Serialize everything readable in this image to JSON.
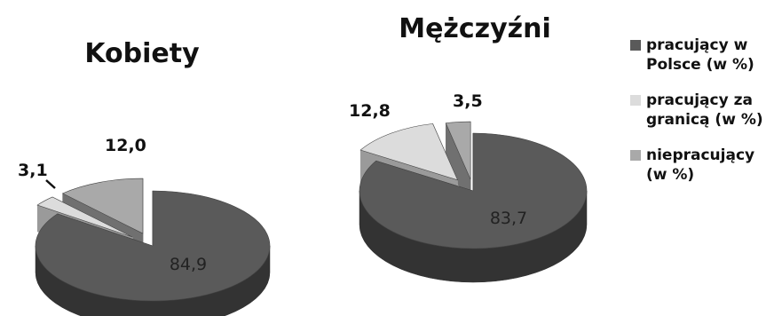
{
  "chart_data": [
    {
      "type": "pie",
      "title": "Kobiety",
      "series": [
        {
          "name": "pracujący w Polsce (w %)",
          "value": 84.9,
          "label": "84,9"
        },
        {
          "name": "pracujący za granicą (w %)",
          "value": 3.1,
          "label": "3,1"
        },
        {
          "name": "niepracujący (w %)",
          "value": 12.0,
          "label": "12,0"
        }
      ]
    },
    {
      "type": "pie",
      "title": "Mężczyźni",
      "series": [
        {
          "name": "pracujący w Polsce (w %)",
          "value": 83.7,
          "label": "83,7"
        },
        {
          "name": "pracujący za granicą (w %)",
          "value": 12.8,
          "label": "12,8"
        },
        {
          "name": "niepracujący (w %)",
          "value": 3.5,
          "label": "3,5"
        }
      ]
    }
  ],
  "legend": {
    "placement": "right",
    "items": [
      {
        "label_line1": "pracujący w",
        "label_line2": "Polsce (w %)",
        "color": "#5a5a5a"
      },
      {
        "label_line1": "pracujący za",
        "label_line2": "granicą (w %)",
        "color": "#dcdcdc"
      },
      {
        "label_line1": "niepracujący",
        "label_line2": "(w %)",
        "color": "#a9a9a9"
      }
    ]
  },
  "colors": {
    "top": [
      "#5a5a5a",
      "#dcdcdc",
      "#a9a9a9"
    ],
    "side": [
      "#333333",
      "#9a9a9a",
      "#707070"
    ]
  }
}
